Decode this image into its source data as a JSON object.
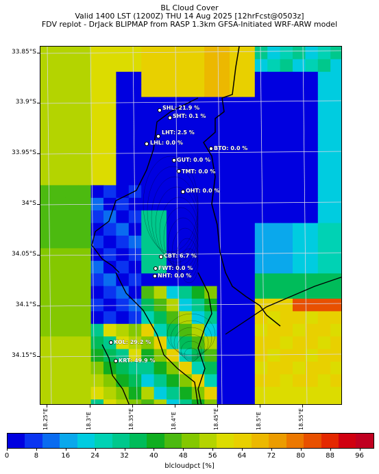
{
  "title": {
    "line1": "BL Cloud Cover",
    "line2": "Valid 1400 LST (1200Z) THU 14 Aug 2025 [12hrFcst@0503z]",
    "line3": "FDV replot - DrJack BLIPMAP from RASP 1.3km GFSA-Initiated WRF-ARW model"
  },
  "axes": {
    "y_ticks": [
      "33.85°S",
      "33.9°S",
      "33.95°S",
      "34°S",
      "34.05°S",
      "34.1°S",
      "34.15°S"
    ],
    "x_ticks": [
      "18.25°E",
      "18.3°E",
      "18.35°E",
      "18.4°E",
      "18.45°E",
      "18.5°E",
      "18.55°E"
    ]
  },
  "stations": [
    {
      "code": "SHL",
      "label": "SHL: 21.9 %"
    },
    {
      "code": "SHT",
      "label": "SHT: 0.1 %"
    },
    {
      "code": "LHT",
      "label": "LHT: 2.5 %"
    },
    {
      "code": "LHL",
      "label": "LHL: 0.0 %"
    },
    {
      "code": "BTO",
      "label": "BTO: 0.0 %"
    },
    {
      "code": "GUT",
      "label": "GUT: 0.0 %"
    },
    {
      "code": "TMT",
      "label": "TMT: 0.0 %"
    },
    {
      "code": "OHT",
      "label": "OHT: 0.0 %"
    },
    {
      "code": "CBT",
      "label": "CBT: 6.7 %"
    },
    {
      "code": "FWT",
      "label": "FWT: 0.0 %"
    },
    {
      "code": "NHT",
      "label": "NHT: 0.0 %"
    },
    {
      "code": "KOL",
      "label": "KOL: 29.2 %"
    },
    {
      "code": "KRT",
      "label": "KRT: 49.9 %"
    }
  ],
  "colorbar": {
    "label": "blcloudpct [%]",
    "ticks": [
      "0",
      "8",
      "16",
      "24",
      "32",
      "40",
      "48",
      "56",
      "64",
      "72",
      "80",
      "88",
      "96"
    ],
    "colors": [
      "#0000e0",
      "#0a34f0",
      "#0a6cf0",
      "#0aa8ec",
      "#00cce0",
      "#00d2b4",
      "#00c88c",
      "#00bc5a",
      "#10ae20",
      "#4cba10",
      "#84c800",
      "#b4d400",
      "#dcdc00",
      "#e8d000",
      "#ecb800",
      "#ec9c00",
      "#ec7800",
      "#e85000",
      "#e42800",
      "#d00010",
      "#c00020"
    ],
    "scale_range": [
      0,
      100
    ]
  }
}
